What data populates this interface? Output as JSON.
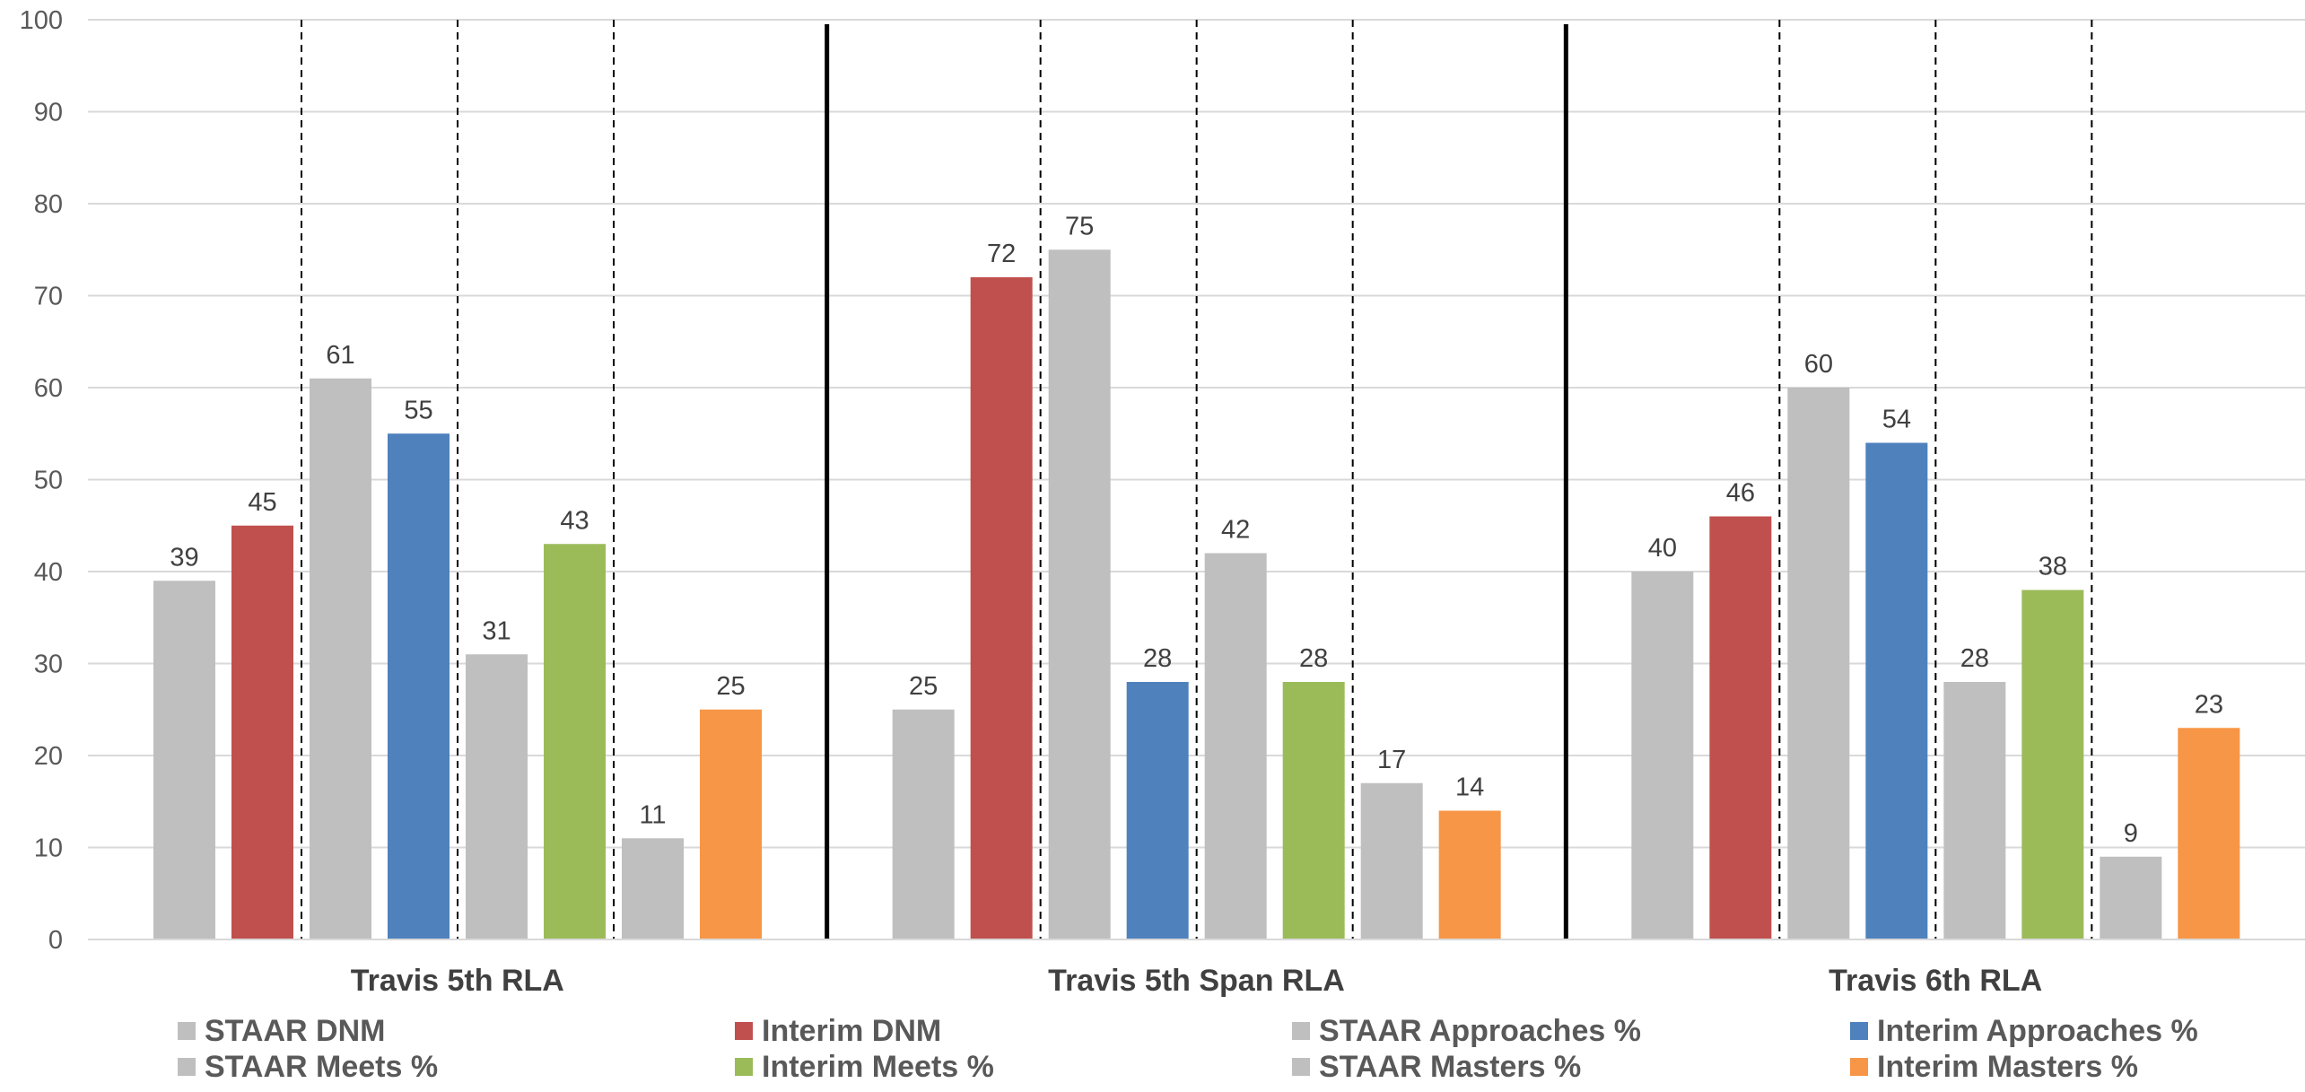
{
  "chart_data": {
    "type": "bar",
    "categories": [
      "Travis 5th RLA",
      "Travis 5th Span RLA",
      "Travis 6th RLA"
    ],
    "series": [
      {
        "name": "STAAR DNM",
        "color": "#bfbfbf",
        "values": [
          39,
          25,
          40
        ]
      },
      {
        "name": "Interim DNM",
        "color": "#c0504d",
        "values": [
          45,
          72,
          46
        ]
      },
      {
        "name": "STAAR Approaches %",
        "color": "#bfbfbf",
        "values": [
          61,
          75,
          60
        ]
      },
      {
        "name": "Interim Approaches %",
        "color": "#4f81bd",
        "values": [
          55,
          28,
          54
        ]
      },
      {
        "name": "STAAR Meets %",
        "color": "#bfbfbf",
        "values": [
          31,
          42,
          28
        ]
      },
      {
        "name": "Interim Meets %",
        "color": "#9bbb59",
        "values": [
          43,
          28,
          38
        ]
      },
      {
        "name": "STAAR Masters %",
        "color": "#bfbfbf",
        "values": [
          11,
          17,
          9
        ]
      },
      {
        "name": "Interim Masters %",
        "color": "#f79646",
        "values": [
          25,
          14,
          23
        ]
      }
    ],
    "ylim": [
      0,
      100
    ],
    "yticks": [
      0,
      10,
      20,
      30,
      40,
      50,
      60,
      70,
      80,
      90,
      100
    ],
    "title": "",
    "xlabel": "",
    "ylabel": "",
    "grid": true,
    "legend_position": "bottom"
  }
}
